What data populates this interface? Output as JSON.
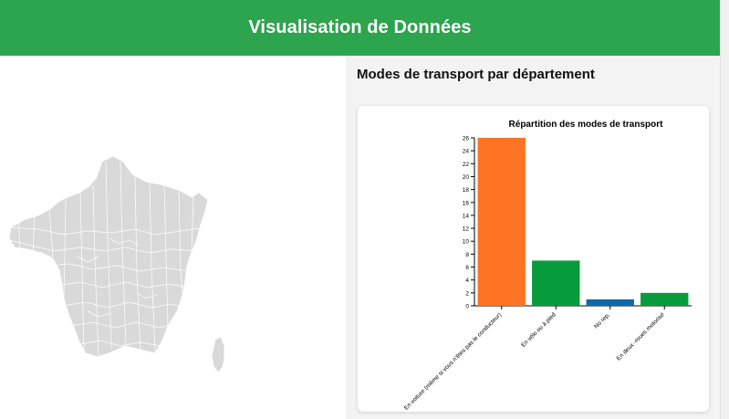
{
  "header": {
    "title": "Visualisation de Données"
  },
  "map": {
    "fill_color": "#d9d9d9",
    "stroke_color": "#ffffff"
  },
  "section": {
    "title": "Modes de transport par département"
  },
  "chart_data": {
    "type": "bar",
    "title": "Répartition des modes de transport",
    "xlabel": "",
    "ylabel": "",
    "categories": [
      "En voiture (même si vous n'êtes pas le conducteur)",
      "En vélo ou à pied",
      "No rep.",
      "En deux -roues motorisé"
    ],
    "values": [
      26,
      7,
      1,
      2
    ],
    "colors": [
      "#ff7325",
      "#089b3e",
      "#0d6aab",
      "#089b3e"
    ],
    "ylim": [
      0,
      26
    ],
    "yticks": [
      0,
      2,
      4,
      6,
      8,
      10,
      12,
      14,
      16,
      18,
      20,
      22,
      24,
      26
    ],
    "grid": false,
    "legend": "none"
  }
}
